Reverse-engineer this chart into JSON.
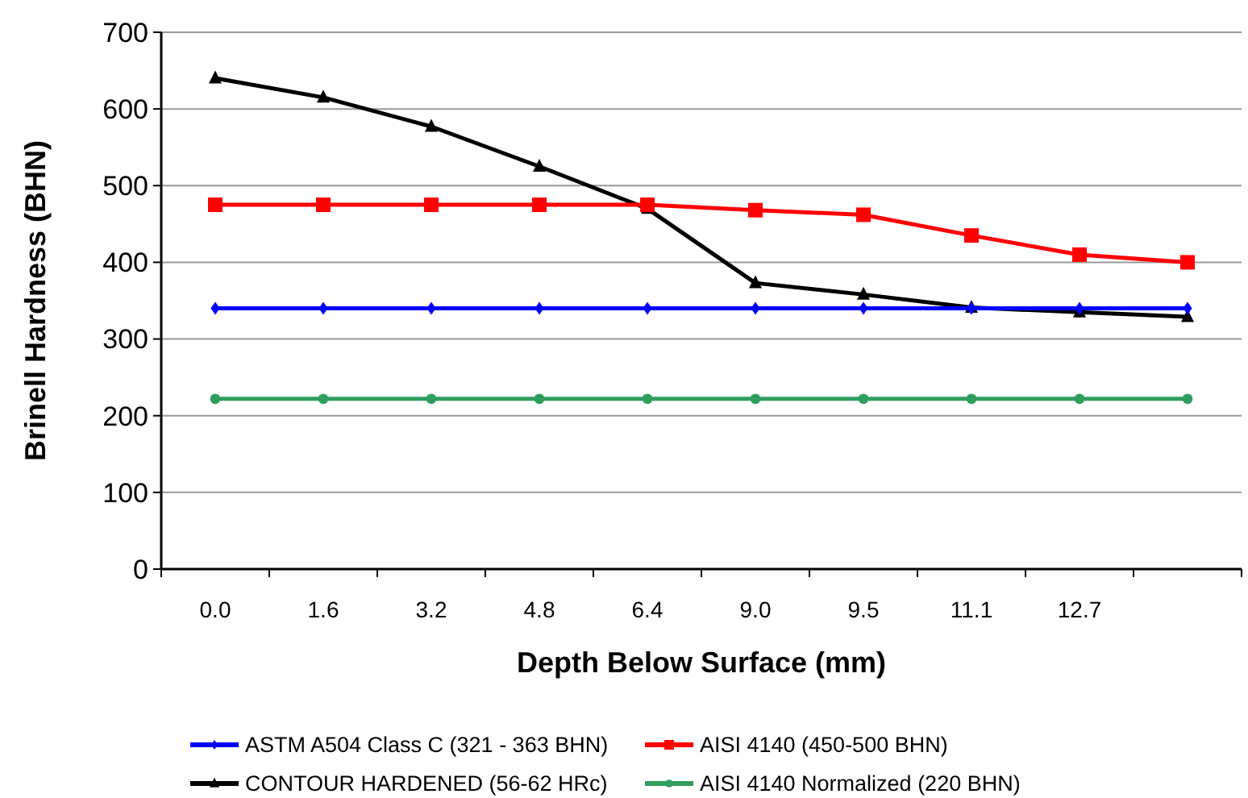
{
  "chart_data": {
    "type": "line",
    "xlabel": "Depth Below Surface (mm)",
    "ylabel": "Brinell Hardness (BHN)",
    "categories": [
      "0.0",
      "1.6",
      "3.2",
      "4.8",
      "6.4",
      "9.0",
      "9.5",
      "11.1",
      "12.7",
      null
    ],
    "ylim": [
      0,
      700
    ],
    "yticks": [
      0,
      100,
      200,
      300,
      400,
      500,
      600,
      700
    ],
    "grid": "y",
    "legend": "bottom",
    "series": [
      {
        "name": "ASTM A504 Class C (321 - 363 BHN)",
        "color": "#0000ff",
        "marker": "diamond",
        "values": [
          340,
          340,
          340,
          340,
          340,
          340,
          340,
          340,
          340,
          340
        ]
      },
      {
        "name": "AISI 4140 (450-500 BHN)",
        "color": "#ff0000",
        "marker": "square",
        "values": [
          475,
          475,
          475,
          475,
          475,
          468,
          462,
          435,
          410,
          400
        ]
      },
      {
        "name": "CONTOUR HARDENED (56-62 HRc)",
        "color": "#000000",
        "marker": "triangle",
        "values": [
          640,
          615,
          577,
          525,
          470,
          373,
          358,
          341,
          335,
          329
        ]
      },
      {
        "name": "AISI 4140 Normalized (220 BHN)",
        "color": "#2e9e5e",
        "marker": "circle",
        "values": [
          222,
          222,
          222,
          222,
          222,
          222,
          222,
          222,
          222,
          222
        ]
      }
    ]
  }
}
